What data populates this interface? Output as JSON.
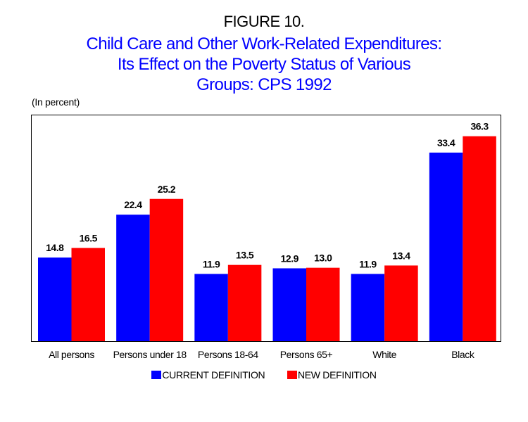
{
  "chart_data": {
    "type": "bar",
    "figure_label": "FIGURE 10.",
    "title_lines": [
      "Child Care and Other Work-Related Expenditures:",
      "Its Effect on the Poverty Status of Various",
      "Groups:  CPS 1992"
    ],
    "ylabel": "(In percent)",
    "xlabel": "",
    "ylim": [
      0,
      40
    ],
    "grid": false,
    "legend_position": "bottom",
    "categories": [
      "All persons",
      "Persons under 18",
      "Persons 18-64",
      "Persons 65+",
      "White",
      "Black"
    ],
    "series": [
      {
        "name": "CURRENT DEFINITION",
        "color": "#0000ff",
        "values": [
          14.8,
          22.4,
          11.9,
          12.9,
          11.9,
          33.4
        ],
        "labels": [
          "14.8",
          "22.4",
          "11.9",
          "12.9",
          "11.9",
          "33.4"
        ]
      },
      {
        "name": "NEW DEFINITION",
        "color": "#ff0000",
        "values": [
          16.5,
          25.2,
          13.5,
          13.0,
          13.4,
          36.3
        ],
        "labels": [
          "16.5",
          "25.2",
          "13.5",
          "13.0",
          "13.4",
          "36.3"
        ]
      }
    ]
  }
}
